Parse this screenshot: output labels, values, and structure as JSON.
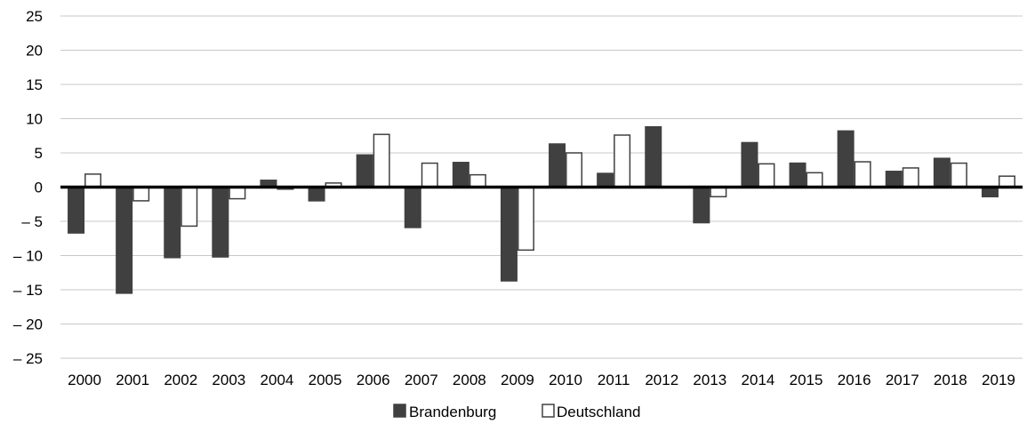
{
  "chart_data": {
    "type": "bar",
    "title": "",
    "xlabel": "",
    "ylabel": "",
    "categories": [
      "2000",
      "2001",
      "2002",
      "2003",
      "2004",
      "2005",
      "2006",
      "2007",
      "2008",
      "2009",
      "2010",
      "2011",
      "2012",
      "2013",
      "2014",
      "2015",
      "2016",
      "2017",
      "2018",
      "2019"
    ],
    "series": [
      {
        "name": "Brandenburg",
        "color": "#404040",
        "values": [
          -6.7,
          -15.5,
          -10.3,
          -10.2,
          1.0,
          -2.0,
          4.7,
          -5.9,
          3.6,
          -13.7,
          6.3,
          2.0,
          8.8,
          -5.2,
          6.5,
          3.5,
          8.2,
          2.3,
          4.2,
          -1.4
        ]
      },
      {
        "name": "Deutschland",
        "color": "#ffffff",
        "values": [
          1.9,
          -2.0,
          -5.7,
          -1.7,
          -0.3,
          0.6,
          7.7,
          3.5,
          1.8,
          -9.2,
          5.0,
          7.6,
          0.0,
          -1.4,
          3.4,
          2.1,
          3.7,
          2.8,
          3.5,
          1.6
        ]
      }
    ],
    "ylim": [
      -25,
      25
    ],
    "yticks": [
      "25",
      "20",
      "15",
      "10",
      "5",
      "0",
      "– 5",
      "– 10",
      "– 15",
      "– 20",
      "– 25"
    ],
    "grid": true,
    "legend_position": "bottom"
  }
}
